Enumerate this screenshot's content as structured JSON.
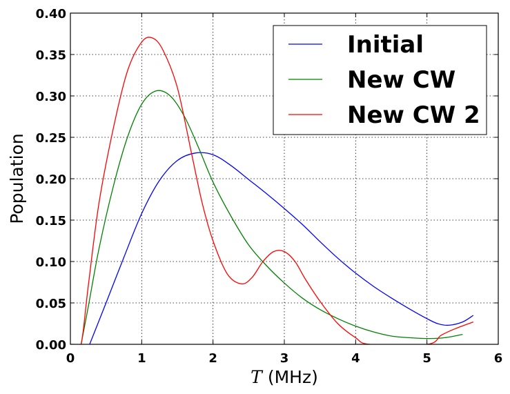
{
  "chart_data": {
    "type": "line",
    "xlabel_symbol": "T",
    "xlabel_unit": "(MHz)",
    "ylabel": "Population",
    "xlim": [
      0,
      6
    ],
    "ylim": [
      0,
      0.4
    ],
    "x_ticks": [
      "0",
      "1",
      "2",
      "3",
      "4",
      "5",
      "6"
    ],
    "y_ticks": [
      "0.00",
      "0.05",
      "0.10",
      "0.15",
      "0.20",
      "0.25",
      "0.30",
      "0.35",
      "0.40"
    ],
    "grid": true,
    "legend_position": "top-right",
    "series": [
      {
        "name": "Initial",
        "color": "#0000ff",
        "x": [
          0.27,
          0.5,
          0.75,
          1.0,
          1.25,
          1.5,
          1.75,
          2.0,
          2.25,
          2.5,
          2.75,
          3.0,
          3.25,
          3.5,
          3.75,
          4.0,
          4.25,
          4.5,
          4.75,
          5.0,
          5.15,
          5.3,
          5.5,
          5.65
        ],
        "y": [
          0.0,
          0.05,
          0.105,
          0.158,
          0.198,
          0.222,
          0.231,
          0.229,
          0.216,
          0.199,
          0.182,
          0.164,
          0.145,
          0.124,
          0.104,
          0.086,
          0.07,
          0.056,
          0.043,
          0.031,
          0.025,
          0.023,
          0.027,
          0.035
        ]
      },
      {
        "name": "New CW",
        "color": "#008000",
        "x": [
          0.15,
          0.25,
          0.4,
          0.6,
          0.8,
          1.0,
          1.2,
          1.4,
          1.6,
          1.8,
          2.0,
          2.25,
          2.5,
          2.75,
          3.0,
          3.25,
          3.5,
          3.75,
          4.0,
          4.25,
          4.5,
          4.75,
          5.0,
          5.25,
          5.5
        ],
        "y": [
          0.0,
          0.045,
          0.115,
          0.19,
          0.25,
          0.29,
          0.306,
          0.3,
          0.275,
          0.237,
          0.196,
          0.155,
          0.12,
          0.095,
          0.074,
          0.056,
          0.042,
          0.031,
          0.022,
          0.015,
          0.01,
          0.008,
          0.007,
          0.008,
          0.012
        ]
      },
      {
        "name": "New CW 2",
        "color": "#ff0000",
        "x": [
          0.0,
          0.05,
          0.15,
          0.25,
          0.4,
          0.6,
          0.8,
          1.0,
          1.15,
          1.3,
          1.5,
          1.7,
          1.85,
          2.0,
          2.2,
          2.4,
          2.55,
          2.7,
          2.85,
          3.0,
          3.15,
          3.3,
          3.5,
          3.75,
          4.0,
          4.2,
          5.0,
          5.2,
          5.4,
          5.65
        ],
        "y": [
          0.0,
          0.0,
          0.0,
          0.07,
          0.17,
          0.26,
          0.33,
          0.365,
          0.37,
          0.355,
          0.31,
          0.23,
          0.17,
          0.125,
          0.085,
          0.073,
          0.081,
          0.1,
          0.112,
          0.112,
          0.1,
          0.078,
          0.052,
          0.025,
          0.008,
          0.0,
          0.0,
          0.011,
          0.019,
          0.027
        ]
      }
    ]
  }
}
